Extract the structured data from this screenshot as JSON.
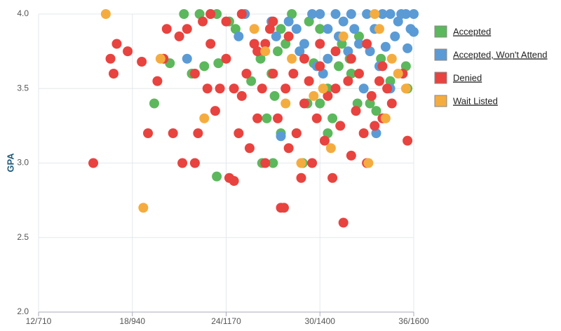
{
  "chart_data": {
    "type": "scatter",
    "y_label": "GPA",
    "xlim": [
      12,
      36
    ],
    "ylim": [
      2.0,
      4.0
    ],
    "xticks": [
      {
        "value": 12,
        "label": "12/710"
      },
      {
        "value": 18,
        "label": "18/940"
      },
      {
        "value": 24,
        "label": "24/1170"
      },
      {
        "value": 30,
        "label": "30/1400"
      },
      {
        "value": 36,
        "label": "36/1600"
      }
    ],
    "yticks": [
      {
        "value": 2.0,
        "label": "2.0"
      },
      {
        "value": 2.5,
        "label": "2.5"
      },
      {
        "value": 3.0,
        "label": "3.0"
      },
      {
        "value": 3.5,
        "label": "3.5"
      },
      {
        "value": 4.0,
        "label": "4.0"
      }
    ],
    "grid": true,
    "legend": "right",
    "series": [
      {
        "name": "Accepted",
        "color": "#5cb85c",
        "x": [
          21.3,
          22.3,
          23.4,
          24.2,
          24.6,
          19.4,
          20.4,
          21.8,
          22.6,
          23.5,
          23.4,
          26.2,
          26.9,
          27.1,
          27.3,
          27.5,
          28.9,
          26.3,
          27.0,
          29.6,
          30.5,
          30.8,
          31.2,
          31.9,
          32.4,
          33.2,
          33.6,
          34.5,
          35.5,
          35.6,
          29.2,
          30.5,
          28.5,
          27.5,
          29.3,
          30.0,
          32.5,
          31.4,
          28.2,
          32.0,
          33.9,
          26.6,
          25.6,
          30.0,
          27.8
        ],
        "values": [
          4.0,
          4.0,
          4.0,
          3.95,
          3.9,
          3.4,
          3.67,
          3.6,
          3.65,
          3.67,
          2.91,
          3.7,
          3.6,
          3.45,
          3.75,
          3.2,
          3.0,
          3.0,
          3.0,
          3.67,
          3.5,
          3.3,
          3.65,
          3.7,
          3.4,
          3.4,
          3.35,
          3.55,
          3.65,
          3.5,
          3.4,
          3.2,
          3.2,
          3.9,
          3.95,
          3.9,
          3.85,
          3.8,
          4.0,
          3.6,
          3.7,
          3.3,
          3.55,
          3.4,
          3.8
        ]
      },
      {
        "name": "Accepted, Won't Attend",
        "color": "#5b9bd5",
        "x": [
          23.0,
          25.2,
          24.8,
          21.5,
          26.9,
          27.5,
          28.0,
          28.5,
          29.0,
          29.5,
          30.0,
          30.5,
          31.0,
          31.5,
          32.0,
          32.5,
          33.0,
          33.5,
          34.0,
          34.5,
          35.0,
          35.5,
          36.0,
          35.8,
          35.6,
          34.8,
          33.2,
          32.8,
          33.6,
          34.5,
          31.8,
          30.5,
          29.8,
          30.2,
          31.2,
          28.7,
          27.2,
          33.8,
          36.0,
          35.2,
          34.2,
          32.2
        ],
        "values": [
          4.0,
          4.0,
          3.85,
          3.7,
          3.95,
          3.18,
          3.95,
          3.9,
          3.8,
          4.0,
          4.0,
          3.9,
          4.0,
          3.95,
          4.0,
          3.8,
          4.0,
          3.9,
          4.0,
          4.0,
          3.95,
          4.0,
          4.0,
          3.9,
          3.77,
          3.85,
          3.75,
          3.5,
          3.2,
          3.5,
          3.75,
          3.7,
          3.65,
          3.6,
          3.85,
          3.75,
          3.85,
          3.65,
          3.88,
          4.0,
          3.78,
          3.9
        ]
      },
      {
        "name": "Denied",
        "color": "#e8433f",
        "x": [
          15.5,
          17.0,
          16.6,
          16.8,
          17.7,
          18.6,
          19.6,
          20.2,
          20.6,
          21.2,
          21.5,
          22.0,
          22.2,
          22.0,
          22.8,
          23.0,
          23.3,
          23.6,
          24.0,
          24.2,
          24.5,
          24.5,
          24.8,
          25.0,
          25.3,
          25.5,
          25.8,
          26.0,
          26.3,
          26.5,
          26.8,
          27.0,
          27.3,
          27.5,
          27.8,
          28.0,
          28.3,
          28.5,
          28.8,
          29.0,
          29.3,
          29.5,
          29.8,
          30.0,
          30.3,
          30.5,
          30.8,
          31.0,
          31.3,
          31.5,
          31.8,
          32.0,
          32.3,
          32.5,
          32.8,
          33.0,
          33.3,
          33.5,
          33.8,
          34.0,
          34.3,
          34.6,
          35.3,
          35.6,
          24.0,
          25.0,
          26.0,
          27.0,
          28.0,
          29.0,
          30.0,
          31.0,
          32.0,
          33.0,
          34.0,
          23.0,
          21.0,
          22.5,
          20.0,
          19.0,
          27.7,
          26.5
        ],
        "values": [
          3.0,
          3.8,
          3.7,
          3.6,
          3.75,
          3.68,
          3.55,
          3.9,
          3.2,
          3.0,
          3.9,
          3.0,
          3.2,
          3.6,
          3.5,
          3.8,
          3.35,
          3.5,
          3.7,
          2.9,
          2.88,
          3.5,
          3.2,
          3.45,
          3.6,
          3.1,
          3.8,
          3.3,
          3.5,
          3.0,
          3.9,
          3.6,
          3.3,
          2.7,
          3.5,
          3.1,
          3.6,
          3.2,
          2.9,
          3.4,
          3.55,
          3.0,
          3.3,
          3.65,
          3.15,
          3.45,
          2.9,
          3.5,
          3.25,
          2.6,
          3.55,
          3.05,
          3.35,
          3.6,
          3.2,
          3.0,
          3.45,
          3.25,
          3.55,
          3.3,
          3.5,
          3.4,
          3.6,
          3.15,
          3.95,
          4.0,
          3.75,
          3.95,
          3.85,
          3.7,
          3.8,
          3.75,
          3.7,
          3.8,
          3.65,
          4.0,
          3.85,
          3.95,
          3.7,
          3.2,
          2.7,
          3.8
        ]
      },
      {
        "name": "Wait Listed",
        "color": "#f5ac3f",
        "x": [
          16.3,
          18.7,
          19.8,
          22.6,
          26.5,
          28.8,
          28.2,
          30.7,
          30.2,
          33.1,
          33.5,
          34.2,
          35.0,
          35.5,
          33.8,
          27.8,
          31.5,
          29.6,
          34.6,
          25.8
        ],
        "values": [
          4.0,
          2.7,
          3.7,
          3.3,
          3.75,
          3.0,
          3.7,
          3.1,
          3.5,
          3.0,
          4.0,
          3.3,
          3.6,
          3.5,
          3.9,
          3.4,
          3.85,
          3.45,
          3.7,
          3.9
        ]
      }
    ]
  }
}
